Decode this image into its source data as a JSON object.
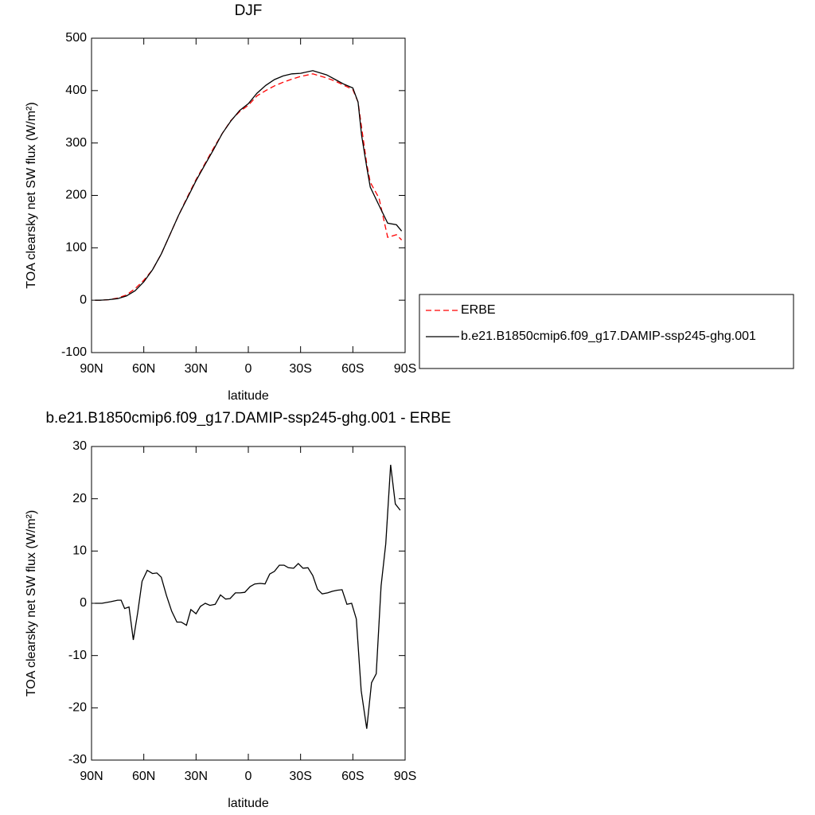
{
  "chart_data": [
    {
      "type": "line",
      "title": "DJF",
      "x_label": "latitude",
      "y_label": "TOA clearsky net SW flux (W/m²)",
      "x": [
        88,
        85,
        80,
        75,
        70,
        65,
        60,
        55,
        50,
        45,
        40,
        35,
        30,
        25,
        20,
        15,
        10,
        5,
        0,
        -5,
        -10,
        -15,
        -20,
        -25,
        -30,
        -37,
        -45,
        -50,
        -55,
        -60,
        -63,
        -65,
        -68,
        -70,
        -75,
        -80,
        -85,
        -88
      ],
      "series": [
        {
          "name": "ERBE",
          "color": "#ff0000",
          "style": "dashed",
          "values": [
            0,
            0,
            1,
            4,
            10,
            22,
            38,
            58,
            88,
            125,
            162,
            197,
            230,
            260,
            290,
            318,
            343,
            360,
            372,
            390,
            400,
            409,
            416,
            422,
            427,
            432,
            424,
            418,
            410,
            402,
            378,
            330,
            260,
            225,
            195,
            120,
            125,
            115
          ]
        },
        {
          "name": "b.e21.B1850cmip6.f09_g17.DAMIP-ssp245-ghg.001",
          "color": "#000000",
          "style": "solid",
          "values": [
            0,
            0,
            1,
            3,
            8,
            18,
            35,
            58,
            88,
            125,
            162,
            195,
            228,
            258,
            287,
            318,
            342,
            362,
            375,
            395,
            410,
            421,
            428,
            432,
            433,
            438,
            430,
            421,
            412,
            405,
            378,
            315,
            254,
            216,
            181,
            147,
            144,
            132
          ]
        }
      ],
      "xlim": [
        90,
        -90
      ],
      "xticks": [
        {
          "value": 90,
          "label": "90N"
        },
        {
          "value": 60,
          "label": "60N"
        },
        {
          "value": 30,
          "label": "30N"
        },
        0,
        {
          "value": -30,
          "label": "30S"
        },
        {
          "value": -60,
          "label": "60S"
        },
        {
          "value": -90,
          "label": "90S"
        }
      ],
      "ylim": [
        -100,
        500
      ],
      "yticks": [
        -100,
        0,
        100,
        200,
        300,
        400,
        500
      ],
      "grid": false,
      "legend": "outside-right"
    },
    {
      "type": "line",
      "title": "b.e21.B1850cmip6.f09_g17.DAMIP-ssp245-ghg.001 - ERBE",
      "x_label": "latitude",
      "y_label": "TOA clearsky net SW flux (W/m²)",
      "x": [
        88,
        84,
        79,
        75,
        73,
        71,
        68.5,
        66,
        63.5,
        61,
        58,
        55,
        52.5,
        50,
        47,
        44,
        41,
        38.5,
        35.5,
        33,
        30,
        27.5,
        24.7,
        22,
        19,
        16,
        13,
        10.5,
        7.4,
        4.6,
        2,
        -1,
        -3.7,
        -6.8,
        -9.6,
        -12.3,
        -15,
        -17.8,
        -20.5,
        -23,
        -26,
        -28.7,
        -31.4,
        -34.2,
        -37,
        -39.7,
        -42.4,
        -45.5,
        -48.3,
        -51,
        -53.8,
        -56.6,
        -59.3,
        -62,
        -64.8,
        -68,
        -70.7,
        -73.4,
        -76.2,
        -78.9,
        -81.7,
        -84.4,
        -87.2
      ],
      "color": "#000000",
      "values": [
        0,
        0,
        0.3,
        0.6,
        0.6,
        -1,
        -0.7,
        -7,
        -1.8,
        4.2,
        6.3,
        5.7,
        5.8,
        5,
        1.5,
        -1.5,
        -3.6,
        -3.6,
        -4.2,
        -1.2,
        -2,
        -0.6,
        0,
        -0.4,
        -0.2,
        1.6,
        0.8,
        0.9,
        2,
        2,
        2.1,
        3.2,
        3.7,
        3.8,
        3.7,
        5.6,
        6.1,
        7.3,
        7.3,
        6.8,
        6.7,
        7.6,
        6.7,
        6.8,
        5.3,
        2.7,
        1.8,
        2,
        2.3,
        2.5,
        2.6,
        -0.2,
        0,
        -3,
        -16.7,
        -24,
        -15.2,
        -13.5,
        3.3,
        11.4,
        26.5,
        19,
        17.8
      ],
      "xlim": [
        90,
        -90
      ],
      "xticks": [
        {
          "value": 90,
          "label": "90N"
        },
        {
          "value": 60,
          "label": "60N"
        },
        {
          "value": 30,
          "label": "30N"
        },
        0,
        {
          "value": -30,
          "label": "30S"
        },
        {
          "value": -60,
          "label": "60S"
        },
        {
          "value": -90,
          "label": "90S"
        }
      ],
      "ylim": [
        -30,
        30
      ],
      "yticks": [
        -30,
        -20,
        -10,
        0,
        10,
        20,
        30
      ],
      "grid": false
    }
  ]
}
